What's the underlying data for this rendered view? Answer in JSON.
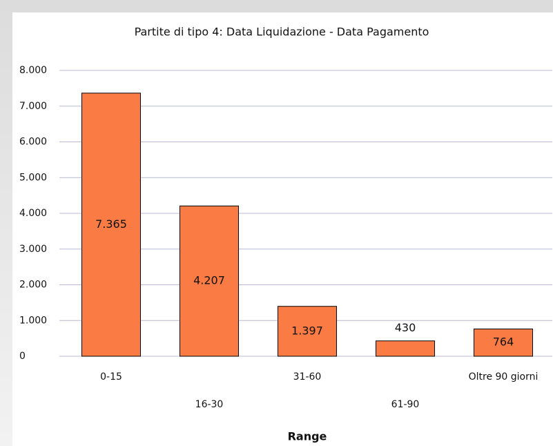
{
  "chart_data": {
    "type": "bar",
    "title": "Partite di tipo 4: Data Liquidazione - Data Pagamento",
    "x_label": "Range",
    "categories": [
      "0-15",
      "16-30",
      "31-60",
      "61-90",
      "Oltre 90 giorni"
    ],
    "values": [
      7365,
      4207,
      1397,
      430,
      764
    ],
    "value_labels": [
      "7.365",
      "4.207",
      "1.397",
      "430",
      "764"
    ],
    "color": "#fb7b45",
    "ylim": [
      0,
      8000
    ],
    "yticks": [
      0,
      {
        "value": 1000,
        "label": "1.000"
      },
      {
        "value": 2000,
        "label": "2.000"
      },
      {
        "value": 3000,
        "label": "3.000"
      },
      {
        "value": 4000,
        "label": "4.000"
      },
      {
        "value": 5000,
        "label": "5.000"
      },
      {
        "value": 6000,
        "label": "6.000"
      },
      {
        "value": 7000,
        "label": "7.000"
      },
      {
        "value": 8000,
        "label": "8.000"
      }
    ],
    "grid": true
  }
}
